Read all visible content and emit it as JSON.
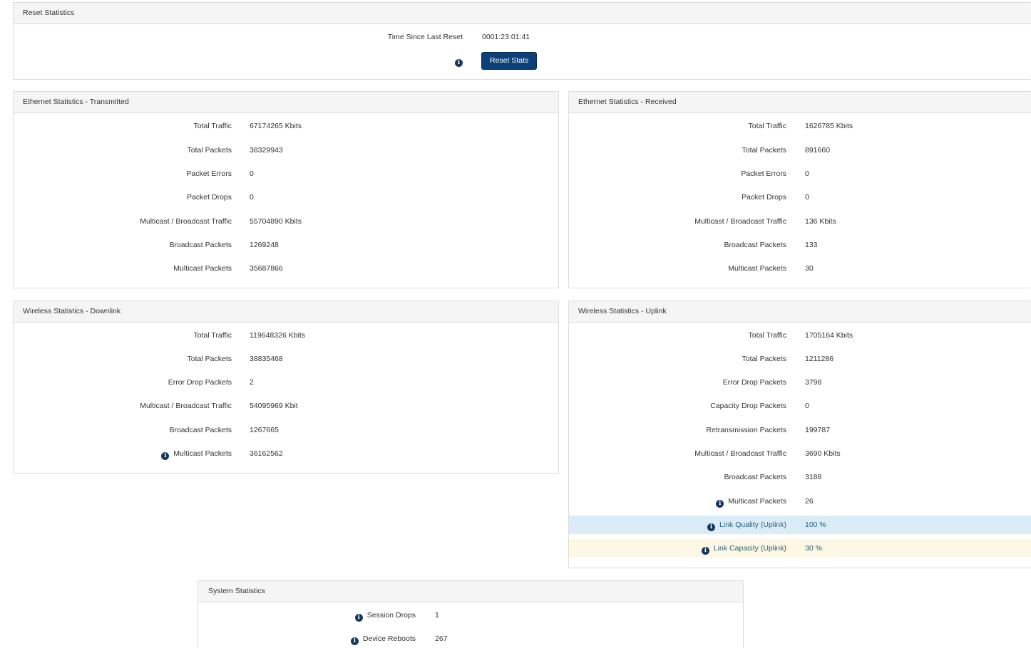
{
  "reset": {
    "title": "Reset Statistics",
    "time_label": "Time Since Last Reset",
    "time_value": "0001:23:01:41",
    "button_label": "Reset Stats"
  },
  "eth_tx": {
    "title": "Ethernet Statistics - Transmitted",
    "rows": [
      {
        "label": "Total Traffic",
        "value": "67174265 Kbits"
      },
      {
        "label": "Total Packets",
        "value": "38329943"
      },
      {
        "label": "Packet Errors",
        "value": "0"
      },
      {
        "label": "Packet Drops",
        "value": "0"
      },
      {
        "label": "Multicast / Broadcast Traffic",
        "value": "55704890 Kbits"
      },
      {
        "label": "Broadcast Packets",
        "value": "1269248"
      },
      {
        "label": "Multicast Packets",
        "value": "35687866"
      }
    ]
  },
  "eth_rx": {
    "title": "Ethernet Statistics - Received",
    "rows": [
      {
        "label": "Total Traffic",
        "value": "1626785 Kbits"
      },
      {
        "label": "Total Packets",
        "value": "891660"
      },
      {
        "label": "Packet Errors",
        "value": "0"
      },
      {
        "label": "Packet Drops",
        "value": "0"
      },
      {
        "label": "Multicast / Broadcast Traffic",
        "value": "136 Kbits"
      },
      {
        "label": "Broadcast Packets",
        "value": "133"
      },
      {
        "label": "Multicast Packets",
        "value": "30"
      }
    ]
  },
  "wl_down": {
    "title": "Wireless Statistics - Downlink",
    "rows": [
      {
        "label": "Total Traffic",
        "value": "119648326 Kbits"
      },
      {
        "label": "Total Packets",
        "value": "38835468"
      },
      {
        "label": "Error Drop Packets",
        "value": "2"
      },
      {
        "label": "Multicast / Broadcast Traffic",
        "value": "54095969 Kbit"
      },
      {
        "label": "Broadcast Packets",
        "value": "1267665"
      },
      {
        "label": "Multicast Packets",
        "value": "36162562"
      }
    ]
  },
  "wl_up": {
    "title": "Wireless Statistics - Uplink",
    "rows": [
      {
        "label": "Total Traffic",
        "value": "1705164 Kbits"
      },
      {
        "label": "Total Packets",
        "value": "1211286"
      },
      {
        "label": "Error Drop Packets",
        "value": "3798"
      },
      {
        "label": "Capacity Drop Packets",
        "value": "0"
      },
      {
        "label": "Retransmission Packets",
        "value": "199787"
      },
      {
        "label": "Multicast / Broadcast Traffic",
        "value": "3690 Kbits"
      },
      {
        "label": "Broadcast Packets",
        "value": "3188"
      },
      {
        "label": "Multicast Packets",
        "value": "26"
      },
      {
        "label": "Link Quality (Uplink)",
        "value": "100 %"
      },
      {
        "label": "Link Capacity (Uplink)",
        "value": "30 %"
      }
    ]
  },
  "sys": {
    "title": "System Statistics",
    "rows": [
      {
        "label": "Session Drops",
        "value": "1"
      },
      {
        "label": "Device Reboots",
        "value": "267"
      }
    ]
  },
  "colors": {
    "button_bg": "#0d3f78",
    "info_icon": "#16385e",
    "link_quality_highlight": "#d9ecf7",
    "link_capacity_highlight": "#fcf8e3"
  },
  "icons": {
    "info": "info-icon"
  }
}
